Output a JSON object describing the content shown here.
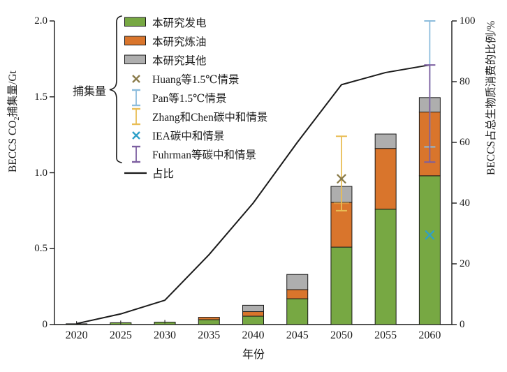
{
  "figure": {
    "left_label_pre": "BECCS CO",
    "left_label_sub": "2",
    "left_label_post": "捕集量/Gt",
    "right_axis_label": "BECCS占总生物质消费的比例/%",
    "x_axis_label": "年份"
  },
  "legend": {
    "group_label": "捕集量",
    "items": [
      {
        "label": "本研究发电",
        "marker": "box",
        "color": "#77a843"
      },
      {
        "label": "本研究炼油",
        "marker": "box",
        "color": "#d9752c"
      },
      {
        "label": "本研究其他",
        "marker": "box",
        "color": "#aeaeae"
      },
      {
        "label": "Huang等1.5℃情景",
        "marker": "x",
        "color": "#8a7b4a"
      },
      {
        "label": "Pan等1.5℃情景",
        "marker": "errorbar",
        "color": "#8cbcdc"
      },
      {
        "label": "Zhang和Chen碳中和情景",
        "marker": "errorbar",
        "color": "#e9bd55"
      },
      {
        "label": "IEA碳中和情景",
        "marker": "x",
        "color": "#2ea0c8"
      },
      {
        "label": "Fuhrman等碳中和情景",
        "marker": "errorbar",
        "color": "#7c5fa0"
      },
      {
        "label": "占比",
        "marker": "line",
        "color": "#1a1a1a"
      }
    ]
  },
  "chart_data": {
    "type": "bar",
    "subtype": "stacked-bar-with-line-and-scenario-markers",
    "title": "",
    "xlabel": "年份",
    "ylabel_left": "BECCS CO₂捕集量/Gt",
    "ylabel_right": "BECCS占总生物质消费的比例/%",
    "categories": [
      "2020",
      "2025",
      "2030",
      "2035",
      "2040",
      "2045",
      "2050",
      "2055",
      "2060"
    ],
    "series": [
      {
        "name": "本研究发电",
        "color": "#77a843",
        "unit": "Gt",
        "values": [
          0.005,
          0.012,
          0.016,
          0.032,
          0.055,
          0.17,
          0.51,
          0.76,
          0.98
        ]
      },
      {
        "name": "本研究炼油",
        "color": "#d9752c",
        "unit": "Gt",
        "values": [
          0,
          0,
          0,
          0.016,
          0.03,
          0.06,
          0.295,
          0.4,
          0.42
        ]
      },
      {
        "name": "本研究其他",
        "color": "#aeaeae",
        "unit": "Gt",
        "values": [
          0,
          0,
          0,
          0,
          0.042,
          0.1,
          0.105,
          0.095,
          0.095
        ]
      }
    ],
    "bar_totals_gt": [
      0.005,
      0.012,
      0.016,
      0.048,
      0.127,
      0.33,
      0.91,
      1.255,
      1.495
    ],
    "bar_whiskers": [
      {
        "year": "2020",
        "top_gt": 0.022
      },
      {
        "year": "2025",
        "top_gt": 0.026
      },
      {
        "year": "2030",
        "top_gt": 0.03
      }
    ],
    "line_series": {
      "name": "占比",
      "axis": "right",
      "unit": "%",
      "color": "#1a1a1a",
      "values": [
        0.3,
        3.5,
        8,
        23,
        40,
        60,
        79,
        83,
        85.5
      ]
    },
    "scenario_markers": [
      {
        "name": "Huang等1.5℃情景",
        "year": "2050",
        "type": "x",
        "value_gt": 0.96,
        "color": "#8a7b4a"
      },
      {
        "name": "Zhang和Chen碳中和情景",
        "year": "2050",
        "type": "errorbar",
        "low_gt": 0.75,
        "high_gt": 1.24,
        "center_gt": 0.8,
        "color": "#e9bd55"
      },
      {
        "name": "Pan等1.5℃情景",
        "year": "2060",
        "type": "errorbar",
        "low_gt": 1.17,
        "high_gt": 2.0,
        "color": "#8cbcdc"
      },
      {
        "name": "Fuhrman等碳中和情景",
        "year": "2060",
        "type": "errorbar",
        "low_gt": 1.07,
        "high_gt": 1.71,
        "color": "#7c5fa0"
      },
      {
        "name": "IEA碳中和情景",
        "year": "2060",
        "type": "x",
        "value_gt": 0.59,
        "color": "#2ea0c8"
      }
    ],
    "left_axis": {
      "min": 0,
      "max": 2.0,
      "ticks": [
        {
          "v": 0,
          "label": "0"
        },
        {
          "v": 0.5,
          "label": "0.5"
        },
        {
          "v": 1.0,
          "label": "1.0"
        },
        {
          "v": 1.5,
          "label": "1.5"
        },
        {
          "v": 2.0,
          "label": "2.0"
        }
      ]
    },
    "right_axis": {
      "min": 0,
      "max": 100,
      "ticks": [
        {
          "v": 0,
          "label": "0"
        },
        {
          "v": 20,
          "label": "20"
        },
        {
          "v": 40,
          "label": "40"
        },
        {
          "v": 60,
          "label": "60"
        },
        {
          "v": 80,
          "label": "80"
        },
        {
          "v": 100,
          "label": "100"
        }
      ]
    },
    "legend_position": "upper-left-inside",
    "grid": false
  }
}
